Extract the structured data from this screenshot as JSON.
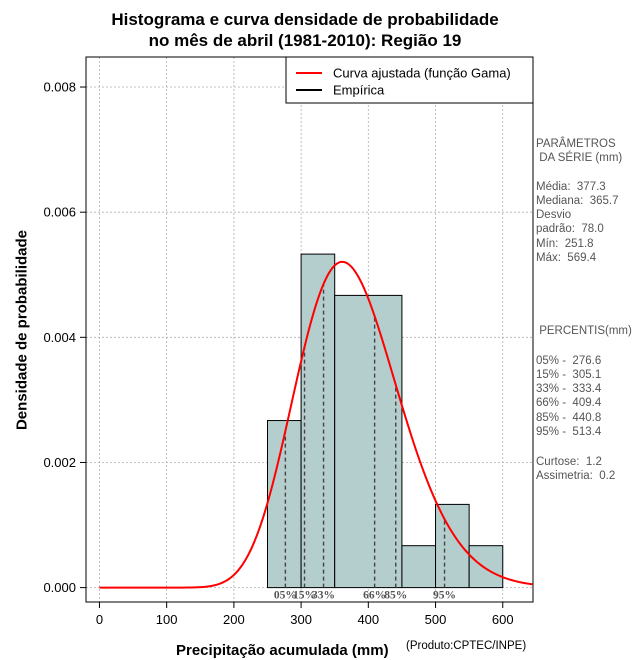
{
  "chart_data": {
    "type": "histogram",
    "title_line1": "Histograma e curva densidade de probabilidade",
    "title_line2": "no mês de abril (1981-2010): Região 19",
    "xlabel": "Precipitação acumulada (mm)",
    "ylabel": "Densidade de probabilidade",
    "credit": "(Produto:CPTEC/INPE)",
    "xlim": [
      -20,
      645
    ],
    "ylim": [
      -0.00023,
      0.00848
    ],
    "x_ticks": [
      0,
      100,
      200,
      300,
      400,
      500,
      600
    ],
    "x_tick_labels": [
      "0",
      "100",
      "200",
      "300",
      "400",
      "500",
      "600"
    ],
    "y_ticks": [
      0,
      0.002,
      0.004,
      0.006,
      0.008
    ],
    "y_tick_labels": [
      "0.000",
      "0.002",
      "0.004",
      "0.006",
      "0.008"
    ],
    "bins": [
      {
        "x0": 250,
        "x1": 300,
        "density": 0.00267
      },
      {
        "x0": 300,
        "x1": 350,
        "density": 0.00533
      },
      {
        "x0": 350,
        "x1": 450,
        "density": 0.00467
      },
      {
        "x0": 450,
        "x1": 500,
        "density": 0.00067
      },
      {
        "x0": 500,
        "x1": 550,
        "density": 0.00133
      },
      {
        "x0": 550,
        "x1": 600,
        "density": 0.00067
      }
    ],
    "curve": {
      "name": "Curva ajustada (função Gama)",
      "color": "#ff0000",
      "shape": 23.4,
      "rate": 0.062,
      "x_start": 0,
      "x_end": 645
    },
    "legend": [
      {
        "label": "Curva ajustada (função Gama)",
        "color": "#ff0000"
      },
      {
        "label": "Empírica",
        "color": "#000000"
      }
    ],
    "percentile_lines": [
      {
        "label": "05%",
        "value": 276.6
      },
      {
        "label": "15%",
        "value": 305.1
      },
      {
        "label": "33%",
        "value": 333.4
      },
      {
        "label": "66%",
        "value": 409.4
      },
      {
        "label": "85%",
        "value": 440.8
      },
      {
        "label": "95%",
        "value": 513.4
      }
    ],
    "bar_color": "#b4cdcd",
    "grid": true
  },
  "side_panel": {
    "params_title_1": "PARÂMETROS",
    "params_title_2": " DA SÉRIE (mm)",
    "media": "Média:  377.3",
    "mediana": "Mediana:  365.7",
    "desvio_1": "Desvio",
    "desvio_2": "padrão:  78.0",
    "min": "Mín:  251.8",
    "max": "Máx:  569.4",
    "percentis_title": " PERCENTIS(mm)",
    "p05": "05% -  276.6",
    "p15": "15% -  305.1",
    "p33": "33% -  333.4",
    "p66": "66% -  409.4",
    "p85": "85% -  440.8",
    "p95": "95% -  513.4",
    "curtose": "Curtose:  1.2",
    "assimetria": "Assimetria:  0.2"
  }
}
